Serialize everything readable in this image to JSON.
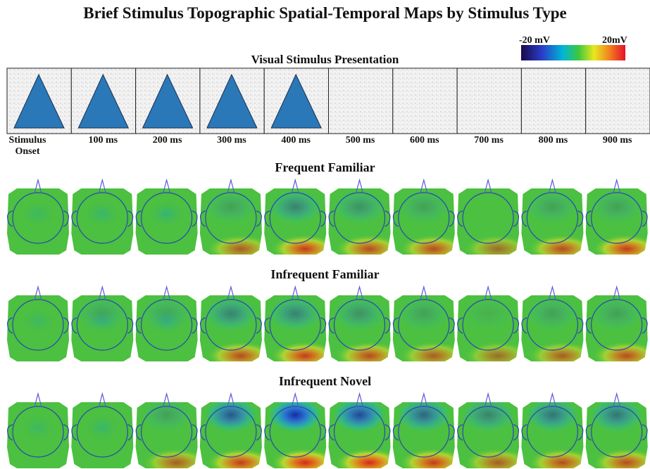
{
  "title": "Brief Stimulus Topographic Spatial-Temporal Maps by Stimulus Type",
  "colorbar": {
    "min_label": "-20 mV",
    "max_label": "20mV"
  },
  "stimulus": {
    "title": "Visual Stimulus Presentation",
    "time_labels": [
      "Stimulus Onset",
      "100 ms",
      "200 ms",
      "300 ms",
      "400 ms",
      "500 ms",
      "600 ms",
      "700 ms",
      "800 ms",
      "900 ms"
    ]
  },
  "rows": [
    {
      "title": "Frequent Familiar"
    },
    {
      "title": "Infrequent Familiar"
    },
    {
      "title": "Infrequent Novel"
    }
  ]
}
